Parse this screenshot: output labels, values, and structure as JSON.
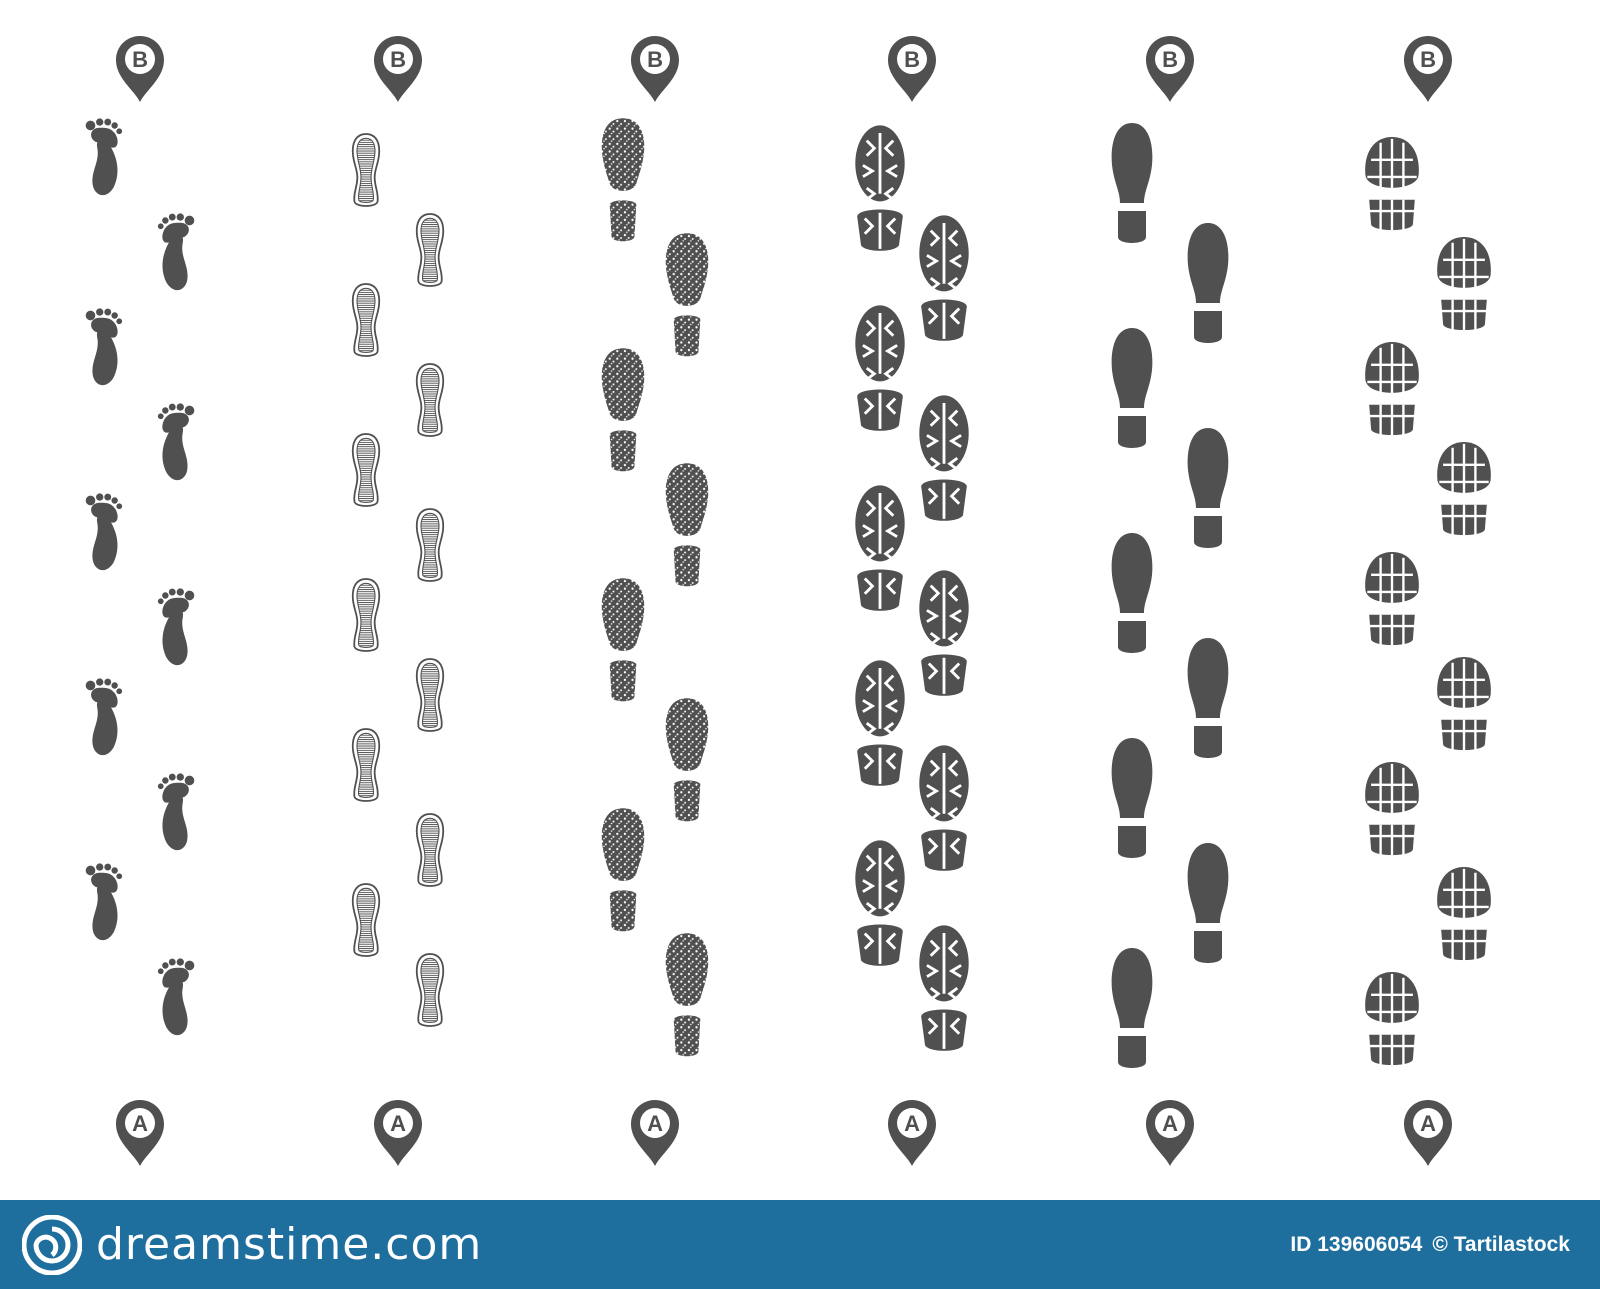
{
  "paths": [
    {
      "id": "barefoot",
      "start_label": "A",
      "end_label": "B",
      "icon": "barefoot-footprint"
    },
    {
      "id": "striped-sole",
      "start_label": "A",
      "end_label": "B",
      "icon": "striped-shoe-sole"
    },
    {
      "id": "grunge-shoe",
      "start_label": "A",
      "end_label": "B",
      "icon": "grunge-shoe-print"
    },
    {
      "id": "boot-tread",
      "start_label": "A",
      "end_label": "B",
      "icon": "boot-tread-print"
    },
    {
      "id": "dress-shoe",
      "start_label": "A",
      "end_label": "B",
      "icon": "dress-shoe-print"
    },
    {
      "id": "sneaker-tread",
      "start_label": "A",
      "end_label": "B",
      "icon": "sneaker-tread-print"
    }
  ],
  "colors": {
    "print": "#505050",
    "footer_bg": "#1f6f9e",
    "footer_text": "#ffffff"
  },
  "footer": {
    "brand_name": "dreamstime.com",
    "image_id": "ID 139606054",
    "author": "© Tartilastock"
  }
}
